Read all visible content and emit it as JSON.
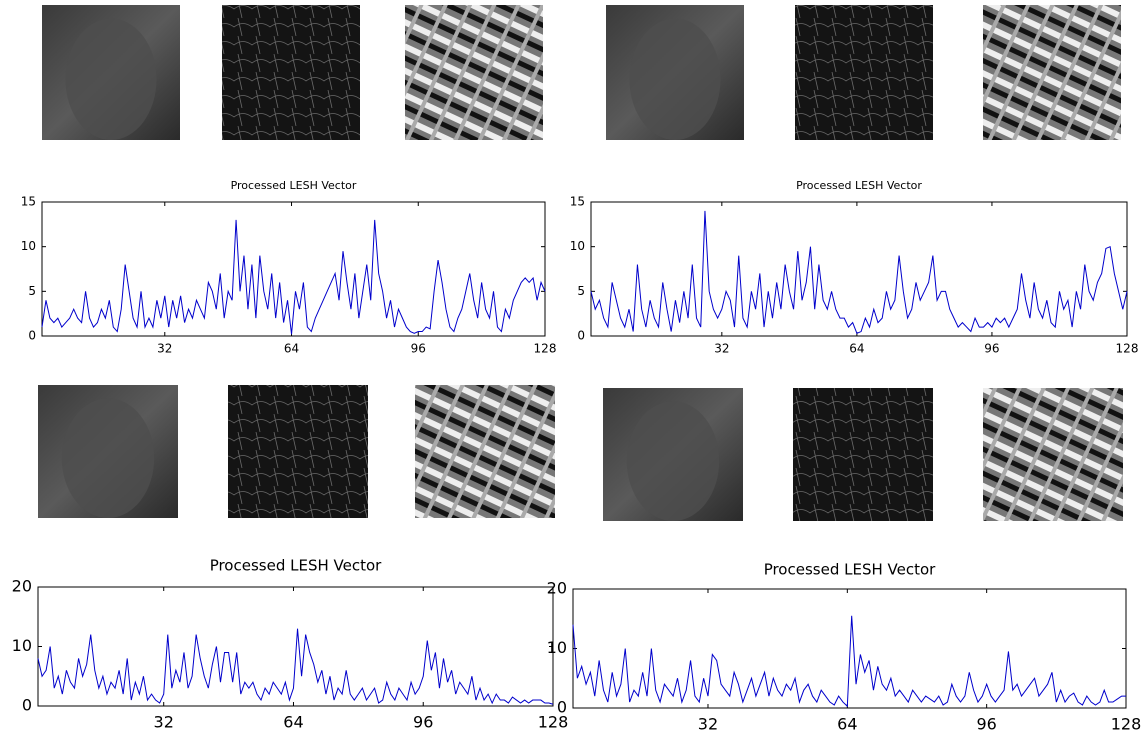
{
  "chart_data": [
    {
      "type": "line",
      "title": "Processed LESH Vector",
      "color": "#0000cc",
      "xlim": [
        1,
        128
      ],
      "ylim": [
        0,
        15
      ],
      "xticks": [
        32,
        64,
        96,
        128
      ],
      "yticks": [
        0,
        5,
        10,
        15
      ],
      "x": [
        1,
        2,
        3,
        4,
        5,
        6,
        7,
        8,
        9,
        10,
        11,
        12,
        13,
        14,
        15,
        16,
        17,
        18,
        19,
        20,
        21,
        22,
        23,
        24,
        25,
        26,
        27,
        28,
        29,
        30,
        31,
        32,
        33,
        34,
        35,
        36,
        37,
        38,
        39,
        40,
        41,
        42,
        43,
        44,
        45,
        46,
        47,
        48,
        49,
        50,
        51,
        52,
        53,
        54,
        55,
        56,
        57,
        58,
        59,
        60,
        61,
        62,
        63,
        64,
        65,
        66,
        67,
        68,
        69,
        70,
        71,
        72,
        73,
        74,
        75,
        76,
        77,
        78,
        79,
        80,
        81,
        82,
        83,
        84,
        85,
        86,
        87,
        88,
        89,
        90,
        91,
        92,
        93,
        94,
        95,
        96,
        97,
        98,
        99,
        100,
        101,
        102,
        103,
        104,
        105,
        106,
        107,
        108,
        109,
        110,
        111,
        112,
        113,
        114,
        115,
        116,
        117,
        118,
        119,
        120,
        121,
        122,
        123,
        124,
        125,
        126,
        127,
        128
      ],
      "values": [
        1,
        4,
        2,
        1.5,
        2,
        1,
        1.5,
        2,
        3,
        2,
        1.5,
        5,
        2,
        1,
        1.5,
        3,
        2,
        4,
        1,
        0.5,
        3,
        8,
        5,
        2,
        1,
        5,
        1,
        2,
        1,
        4,
        2,
        4.5,
        1,
        4,
        2,
        4.5,
        1.5,
        3,
        2,
        4,
        3,
        2,
        6,
        5,
        3,
        7,
        2,
        5,
        4,
        13,
        5,
        9,
        3,
        8,
        2,
        9,
        5,
        3,
        7,
        2,
        6,
        1.5,
        4,
        0.2,
        5,
        3,
        6,
        1,
        0.5,
        2,
        3,
        4,
        5,
        6,
        7,
        4,
        9.5,
        6,
        3,
        7,
        2,
        5,
        8,
        4,
        13,
        7,
        5,
        2,
        4,
        1,
        3,
        2,
        1,
        0.5,
        0.3,
        0.5,
        0.5,
        1,
        0.8,
        5,
        8.5,
        6,
        3,
        1,
        0.5,
        2,
        3,
        5,
        7,
        4,
        2,
        6,
        3,
        2,
        5,
        1,
        0.5,
        3,
        2,
        4,
        5,
        6,
        6.5,
        6,
        6.5,
        4,
        6,
        5
      ]
    },
    {
      "type": "line",
      "title": "Processed LESH Vector",
      "color": "#0000cc",
      "xlim": [
        1,
        128
      ],
      "ylim": [
        0,
        15
      ],
      "xticks": [
        32,
        64,
        96,
        128
      ],
      "yticks": [
        0,
        5,
        10,
        15
      ],
      "x": [
        1,
        2,
        3,
        4,
        5,
        6,
        7,
        8,
        9,
        10,
        11,
        12,
        13,
        14,
        15,
        16,
        17,
        18,
        19,
        20,
        21,
        22,
        23,
        24,
        25,
        26,
        27,
        28,
        29,
        30,
        31,
        32,
        33,
        34,
        35,
        36,
        37,
        38,
        39,
        40,
        41,
        42,
        43,
        44,
        45,
        46,
        47,
        48,
        49,
        50,
        51,
        52,
        53,
        54,
        55,
        56,
        57,
        58,
        59,
        60,
        61,
        62,
        63,
        64,
        65,
        66,
        67,
        68,
        69,
        70,
        71,
        72,
        73,
        74,
        75,
        76,
        77,
        78,
        79,
        80,
        81,
        82,
        83,
        84,
        85,
        86,
        87,
        88,
        89,
        90,
        91,
        92,
        93,
        94,
        95,
        96,
        97,
        98,
        99,
        100,
        101,
        102,
        103,
        104,
        105,
        106,
        107,
        108,
        109,
        110,
        111,
        112,
        113,
        114,
        115,
        116,
        117,
        118,
        119,
        120,
        121,
        122,
        123,
        124,
        125,
        126,
        127,
        128
      ],
      "values": [
        5,
        3,
        4,
        2,
        1,
        6,
        4,
        2,
        1,
        3,
        0.5,
        8,
        3,
        1,
        4,
        2,
        1,
        6,
        3,
        0.5,
        4,
        1.5,
        5,
        2,
        8,
        2,
        1,
        14,
        5,
        3,
        2,
        3,
        5,
        4,
        1,
        9,
        2,
        1,
        5,
        3,
        7,
        1,
        5,
        2,
        6,
        3,
        8,
        5,
        3,
        9.5,
        4,
        6,
        10,
        3,
        8,
        4,
        3,
        5,
        3,
        2,
        2,
        1,
        1.5,
        0.3,
        0.5,
        2,
        1,
        3,
        1.5,
        2,
        5,
        3,
        4,
        9,
        5,
        2,
        3,
        6,
        4,
        5,
        6,
        9,
        4,
        5,
        5,
        3,
        2,
        1,
        1.5,
        1,
        0.5,
        2,
        1,
        1,
        1.5,
        1,
        2,
        1.5,
        2,
        1,
        2,
        3,
        7,
        4,
        2,
        6,
        3,
        2,
        4,
        1.5,
        1,
        5,
        3,
        4,
        1,
        5,
        3,
        8,
        5,
        4,
        6,
        7,
        9.8,
        10,
        7,
        5,
        3,
        5
      ]
    },
    {
      "type": "line",
      "title": "Processed LESH Vector",
      "color": "#0000cc",
      "xlim": [
        1,
        128
      ],
      "ylim": [
        0,
        20
      ],
      "xticks": [
        32,
        64,
        96,
        128
      ],
      "yticks": [
        0,
        10,
        20
      ],
      "x": [
        1,
        2,
        3,
        4,
        5,
        6,
        7,
        8,
        9,
        10,
        11,
        12,
        13,
        14,
        15,
        16,
        17,
        18,
        19,
        20,
        21,
        22,
        23,
        24,
        25,
        26,
        27,
        28,
        29,
        30,
        31,
        32,
        33,
        34,
        35,
        36,
        37,
        38,
        39,
        40,
        41,
        42,
        43,
        44,
        45,
        46,
        47,
        48,
        49,
        50,
        51,
        52,
        53,
        54,
        55,
        56,
        57,
        58,
        59,
        60,
        61,
        62,
        63,
        64,
        65,
        66,
        67,
        68,
        69,
        70,
        71,
        72,
        73,
        74,
        75,
        76,
        77,
        78,
        79,
        80,
        81,
        82,
        83,
        84,
        85,
        86,
        87,
        88,
        89,
        90,
        91,
        92,
        93,
        94,
        95,
        96,
        97,
        98,
        99,
        100,
        101,
        102,
        103,
        104,
        105,
        106,
        107,
        108,
        109,
        110,
        111,
        112,
        113,
        114,
        115,
        116,
        117,
        118,
        119,
        120,
        121,
        122,
        123,
        124,
        125,
        126,
        127,
        128
      ],
      "values": [
        8,
        5,
        6,
        10,
        3,
        5,
        2,
        6,
        4,
        3,
        8,
        5,
        7,
        12,
        6,
        3,
        5,
        2,
        4,
        3,
        6,
        2,
        8,
        1,
        4,
        2,
        5,
        1,
        2,
        1,
        0.5,
        2,
        12,
        3,
        6,
        4,
        9,
        3,
        5,
        12,
        8,
        5,
        3,
        7,
        10,
        4,
        9,
        9,
        4,
        9,
        2,
        4,
        3,
        4,
        2,
        1,
        3,
        2,
        4,
        3,
        2,
        4,
        1,
        3,
        13,
        5,
        12,
        9,
        7,
        4,
        6,
        2,
        5,
        1,
        3,
        2,
        6,
        2,
        1,
        2,
        3,
        1,
        2,
        3,
        0.5,
        1,
        4,
        2,
        1,
        3,
        2,
        1,
        4,
        2,
        3,
        5,
        11,
        6,
        9,
        3,
        8,
        4,
        6,
        2,
        4,
        3,
        2,
        5,
        1,
        3,
        1,
        2,
        0.5,
        2,
        1,
        1,
        0.5,
        1.5,
        1,
        0.5,
        1,
        0.5,
        1,
        1,
        1,
        0.5,
        0.5,
        0.3
      ]
    },
    {
      "type": "line",
      "title": "Processed LESH Vector",
      "color": "#0000cc",
      "xlim": [
        1,
        128
      ],
      "ylim": [
        0,
        20
      ],
      "xticks": [
        32,
        64,
        96,
        128
      ],
      "yticks": [
        0,
        10,
        20
      ],
      "x": [
        1,
        2,
        3,
        4,
        5,
        6,
        7,
        8,
        9,
        10,
        11,
        12,
        13,
        14,
        15,
        16,
        17,
        18,
        19,
        20,
        21,
        22,
        23,
        24,
        25,
        26,
        27,
        28,
        29,
        30,
        31,
        32,
        33,
        34,
        35,
        36,
        37,
        38,
        39,
        40,
        41,
        42,
        43,
        44,
        45,
        46,
        47,
        48,
        49,
        50,
        51,
        52,
        53,
        54,
        55,
        56,
        57,
        58,
        59,
        60,
        61,
        62,
        63,
        64,
        65,
        66,
        67,
        68,
        69,
        70,
        71,
        72,
        73,
        74,
        75,
        76,
        77,
        78,
        79,
        80,
        81,
        82,
        83,
        84,
        85,
        86,
        87,
        88,
        89,
        90,
        91,
        92,
        93,
        94,
        95,
        96,
        97,
        98,
        99,
        100,
        101,
        102,
        103,
        104,
        105,
        106,
        107,
        108,
        109,
        110,
        111,
        112,
        113,
        114,
        115,
        116,
        117,
        118,
        119,
        120,
        121,
        122,
        123,
        124,
        125,
        126,
        127,
        128
      ],
      "values": [
        14,
        5,
        7,
        4,
        6,
        2,
        8,
        3,
        1,
        6,
        2,
        4,
        10,
        1,
        3,
        2,
        6,
        2,
        10,
        3,
        1,
        4,
        3,
        2,
        5,
        1,
        3,
        8,
        2,
        1,
        5,
        2,
        9,
        8,
        4,
        3,
        2,
        6,
        4,
        1,
        3,
        5,
        2,
        4,
        6,
        2,
        5,
        3,
        2,
        4,
        3,
        5,
        1,
        3,
        4,
        2,
        1,
        3,
        2,
        1,
        0.5,
        2,
        1,
        0.3,
        15.5,
        4,
        9,
        6,
        8,
        3,
        7,
        4,
        3,
        5,
        2,
        3,
        2,
        1,
        3,
        2,
        1,
        2,
        1.5,
        1,
        2,
        0.5,
        1,
        4,
        2,
        1,
        2,
        6,
        3,
        1,
        2,
        4,
        2,
        1,
        2,
        3,
        9.5,
        3,
        4,
        2,
        3,
        4,
        5,
        2,
        3,
        4,
        6,
        1,
        3,
        1,
        2,
        2.5,
        1,
        0.5,
        2,
        1,
        0.5,
        1,
        3,
        1,
        1,
        1.5,
        2,
        2
      ]
    }
  ]
}
